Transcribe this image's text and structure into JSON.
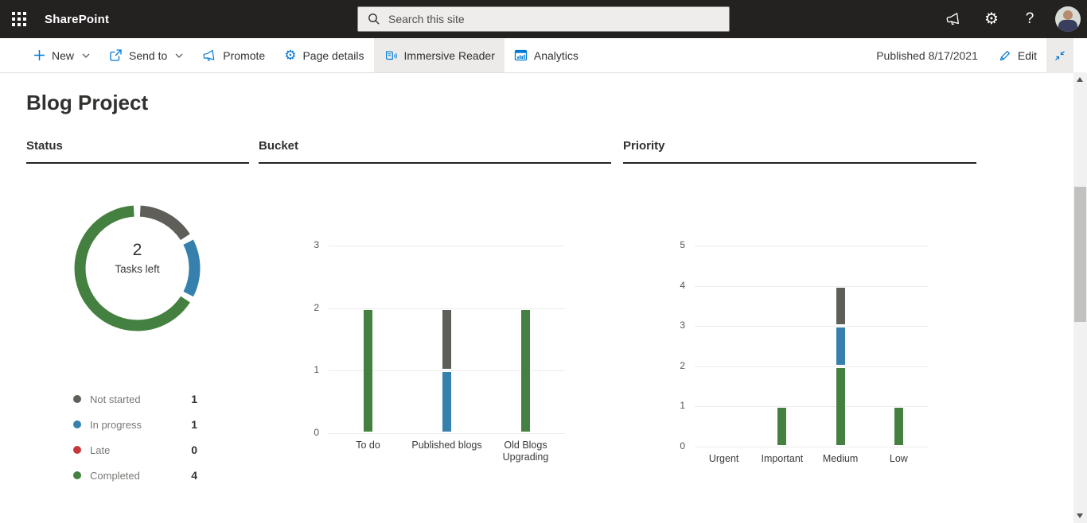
{
  "suite_bar": {
    "app_name": "SharePoint",
    "search_placeholder": "Search this site",
    "icons": {
      "app_launcher": "waffle-grid",
      "search": "magnifier",
      "announcements": "megaphone",
      "settings": "gear",
      "help": "question-mark",
      "profile": "avatar-photo"
    }
  },
  "command_bar": {
    "items": [
      {
        "label": "New",
        "icon": "plus",
        "has_chevron": true
      },
      {
        "label": "Send to",
        "icon": "share-arrow",
        "has_chevron": true
      },
      {
        "label": "Promote",
        "icon": "megaphone",
        "has_chevron": false
      },
      {
        "label": "Page details",
        "icon": "gear",
        "has_chevron": false
      },
      {
        "label": "Immersive Reader",
        "icon": "book-speaker",
        "has_chevron": false,
        "highlighted": true
      },
      {
        "label": "Analytics",
        "icon": "bar-chart",
        "has_chevron": false
      }
    ],
    "published_text": "Published 8/17/2021",
    "edit_label": "Edit",
    "collapse_icon": "diagonal-arrows-inward"
  },
  "page": {
    "title": "Blog Project"
  },
  "sections": {
    "status": "Status",
    "bucket": "Bucket",
    "priority": "Priority"
  },
  "colors": {
    "green": "#44803f",
    "blue": "#3580ad",
    "gray": "#5f5e59",
    "red": "#c5393c",
    "accent": "#0078d4"
  },
  "chart_data": [
    {
      "id": "status_donut",
      "type": "pie",
      "title": "Status",
      "center_value": "2",
      "center_label": "Tasks left",
      "slices": [
        {
          "label": "Not started",
          "value": 1,
          "color": "gray"
        },
        {
          "label": "In progress",
          "value": 1,
          "color": "blue"
        },
        {
          "label": "Late",
          "value": 0,
          "color": "red"
        },
        {
          "label": "Completed",
          "value": 4,
          "color": "green"
        }
      ],
      "legend_position": "below"
    },
    {
      "id": "bucket_bars",
      "type": "bar",
      "stacked": true,
      "title": "Bucket",
      "categories": [
        "To do",
        "Published blogs",
        "Old Blogs Upgrading"
      ],
      "series": [
        {
          "name": "Completed",
          "color": "green",
          "values": [
            2,
            0,
            2
          ]
        },
        {
          "name": "In progress",
          "color": "blue",
          "values": [
            0,
            1,
            0
          ]
        },
        {
          "name": "Not started",
          "color": "gray",
          "values": [
            0,
            1,
            0
          ]
        }
      ],
      "ylim": [
        0,
        3
      ],
      "yticks": [
        0,
        1,
        2,
        3
      ],
      "grid": true,
      "legend": "none"
    },
    {
      "id": "priority_bars",
      "type": "bar",
      "stacked": true,
      "title": "Priority",
      "categories": [
        "Urgent",
        "Important",
        "Medium",
        "Low"
      ],
      "series": [
        {
          "name": "Completed",
          "color": "green",
          "values": [
            0,
            1,
            2,
            1
          ]
        },
        {
          "name": "In progress",
          "color": "blue",
          "values": [
            0,
            0,
            1,
            0
          ]
        },
        {
          "name": "Not started",
          "color": "gray",
          "values": [
            0,
            0,
            1,
            0
          ]
        }
      ],
      "ylim": [
        0,
        5
      ],
      "yticks": [
        0,
        1,
        2,
        3,
        4,
        5
      ],
      "grid": true,
      "legend": "none"
    }
  ]
}
